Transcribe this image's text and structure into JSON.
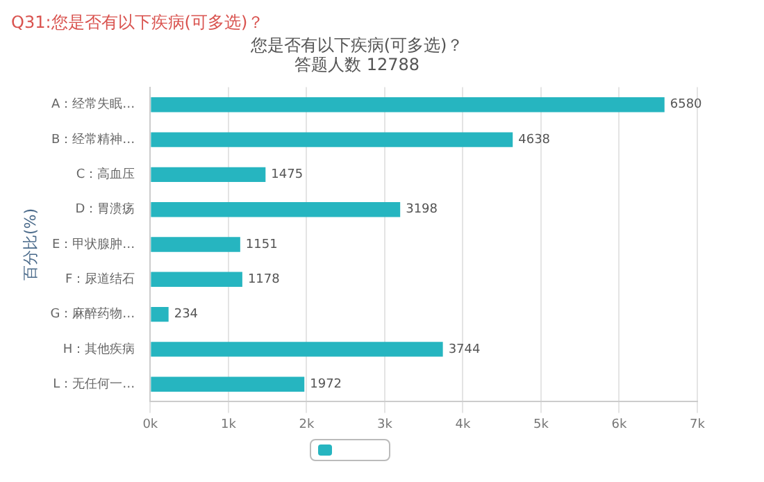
{
  "chart_data": {
    "type": "bar",
    "orientation": "horizontal",
    "title": "您是否有以下疾病(可多选)？",
    "subtitle": "答题人数 12788",
    "ylabel": "百分比(%)",
    "annotations": [
      "Q31:您是否有以下疾病(可多选)？"
    ],
    "categories": [
      "A：经常失眠…",
      "B：经常精神…",
      "C：高血压",
      "D：胃溃疡",
      "E：甲状腺肿…",
      "F：尿道结石",
      "G：麻醉药物…",
      "H：其他疾病",
      "L：无任何一…"
    ],
    "values": [
      6580,
      4638,
      1475,
      3198,
      1151,
      1178,
      234,
      3744,
      1972
    ],
    "color": "#26b5c0",
    "xlim": [
      0,
      7000
    ],
    "xticks": [
      {
        "value": 0,
        "label": "0k"
      },
      {
        "value": 1000,
        "label": "1k"
      },
      {
        "value": 2000,
        "label": "2k"
      },
      {
        "value": 3000,
        "label": "3k"
      },
      {
        "value": 4000,
        "label": "4k"
      },
      {
        "value": 5000,
        "label": "5k"
      },
      {
        "value": 6000,
        "label": "6k"
      },
      {
        "value": 7000,
        "label": "7k"
      }
    ],
    "grid": "x",
    "data_labels": true
  }
}
